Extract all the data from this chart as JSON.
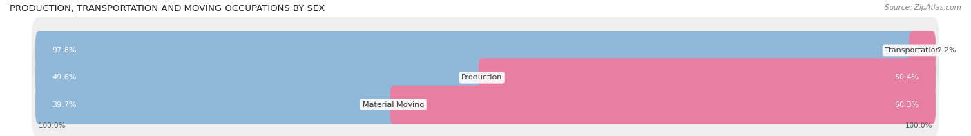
{
  "title": "PRODUCTION, TRANSPORTATION AND MOVING OCCUPATIONS BY SEX",
  "source": "Source: ZipAtlas.com",
  "categories": [
    "Transportation",
    "Production",
    "Material Moving"
  ],
  "male_pct": [
    97.8,
    49.6,
    39.7
  ],
  "female_pct": [
    2.2,
    50.4,
    60.3
  ],
  "male_color": "#91b8d9",
  "female_color": "#e87fa3",
  "row_bg_colors": [
    "#efefef",
    "#e8e8e8",
    "#efefef"
  ],
  "title_fontsize": 9.5,
  "source_fontsize": 7.5,
  "label_fontsize": 8.0,
  "cat_fontsize": 8.0,
  "legend_fontsize": 8.5,
  "axis_label_fontsize": 7.5,
  "fig_bg": "#ffffff",
  "legend_male_color": "#91b8d9",
  "legend_female_color": "#e87fa3",
  "text_dark": "#555555",
  "text_white": "#ffffff"
}
